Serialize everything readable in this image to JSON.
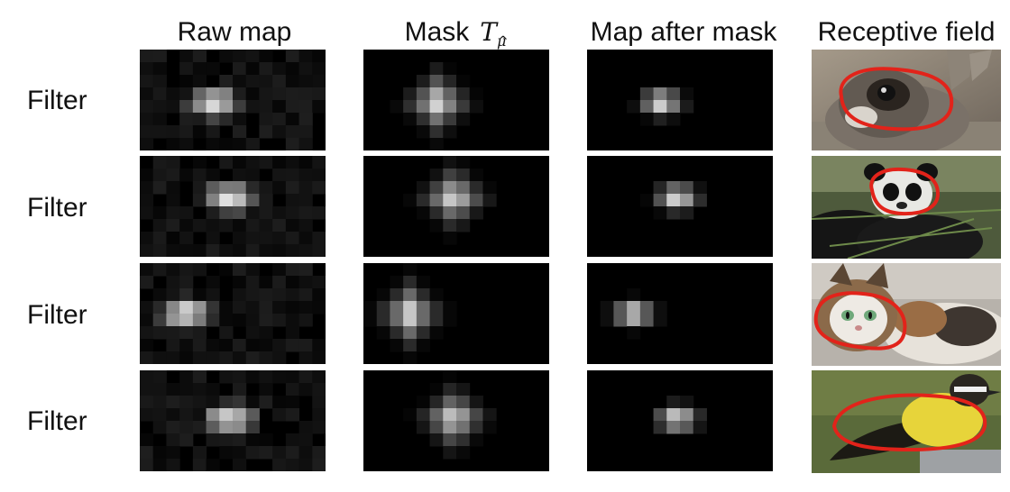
{
  "columns": {
    "raw_map": "Raw map",
    "mask": "Mask",
    "mask_symbol": "T",
    "mask_symbol_sub": "μ",
    "map_after_mask": "Map after mask",
    "receptive_field": "Receptive field"
  },
  "rows": [
    {
      "label": "Filter",
      "subject": "rabbit-photo"
    },
    {
      "label": "Filter",
      "subject": "panda-photo"
    },
    {
      "label": "Filter",
      "subject": "kitten-photo"
    },
    {
      "label": "Filter",
      "subject": "bird-photo"
    }
  ],
  "colors": {
    "background": "#000000",
    "receptive_outline": "#e2231a"
  }
}
